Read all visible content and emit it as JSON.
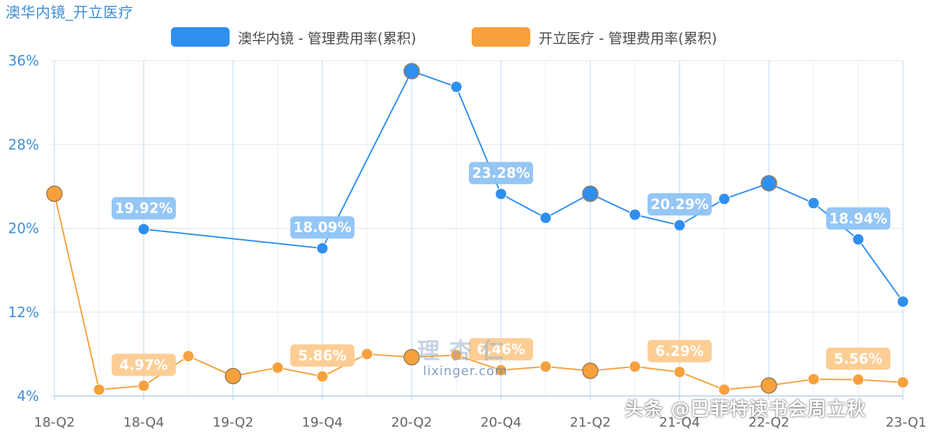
{
  "chart_data": {
    "type": "line",
    "title": "澳华内镜_开立医疗",
    "xlabel": "",
    "ylabel": "",
    "ylim": [
      4,
      36
    ],
    "yticks": [
      "36%",
      "28%",
      "20%",
      "12%",
      "4%"
    ],
    "grid": true,
    "legend_position": "top-center",
    "categories": [
      "18-Q2",
      "18-Q3",
      "18-Q4",
      "19-Q1",
      "19-Q2",
      "19-Q3",
      "19-Q4",
      "20-Q1",
      "20-Q2",
      "20-Q3",
      "20-Q4",
      "21-Q1",
      "21-Q2",
      "21-Q3",
      "21-Q4",
      "22-Q1",
      "22-Q2",
      "22-Q3",
      "22-Q4",
      "23-Q1"
    ],
    "xtick_labels": [
      "18-Q2",
      "18-Q4",
      "19-Q2",
      "19-Q4",
      "20-Q2",
      "20-Q4",
      "21-Q2",
      "21-Q4",
      "22-Q2",
      "23-Q1"
    ],
    "series": [
      {
        "name": "澳华内镜 - 管理费用率(累积)",
        "color": "#2f8ff0",
        "values": [
          null,
          null,
          19.92,
          null,
          null,
          null,
          18.09,
          null,
          35.0,
          33.5,
          23.28,
          21.0,
          23.3,
          21.3,
          20.29,
          22.8,
          24.3,
          22.4,
          18.94,
          13.0
        ]
      },
      {
        "name": "开立医疗 - 管理费用率(累积)",
        "color": "#f6a13c",
        "values": [
          23.3,
          4.6,
          4.97,
          7.8,
          5.9,
          6.7,
          5.86,
          8.0,
          7.7,
          7.9,
          6.46,
          6.8,
          6.4,
          6.8,
          6.29,
          4.6,
          5.0,
          5.6,
          5.56,
          5.3
        ]
      }
    ],
    "data_labels": [
      {
        "series": 0,
        "index": 2,
        "text": "19.92%"
      },
      {
        "series": 0,
        "index": 6,
        "text": "18.09%"
      },
      {
        "series": 0,
        "index": 10,
        "text": "23.28%"
      },
      {
        "series": 0,
        "index": 14,
        "text": "20.29%"
      },
      {
        "series": 0,
        "index": 18,
        "text": "18.94%"
      },
      {
        "series": 1,
        "index": 2,
        "text": "4.97%"
      },
      {
        "series": 1,
        "index": 6,
        "text": "5.86%"
      },
      {
        "series": 1,
        "index": 10,
        "text": "6.46%"
      },
      {
        "series": 1,
        "index": 14,
        "text": "6.29%"
      },
      {
        "series": 1,
        "index": 18,
        "text": "5.56%"
      }
    ]
  },
  "watermark": {
    "text": "头条 @巴菲特读书会周立秋",
    "logo_cn": "理杏仁",
    "logo_en": "lixinger.com"
  }
}
